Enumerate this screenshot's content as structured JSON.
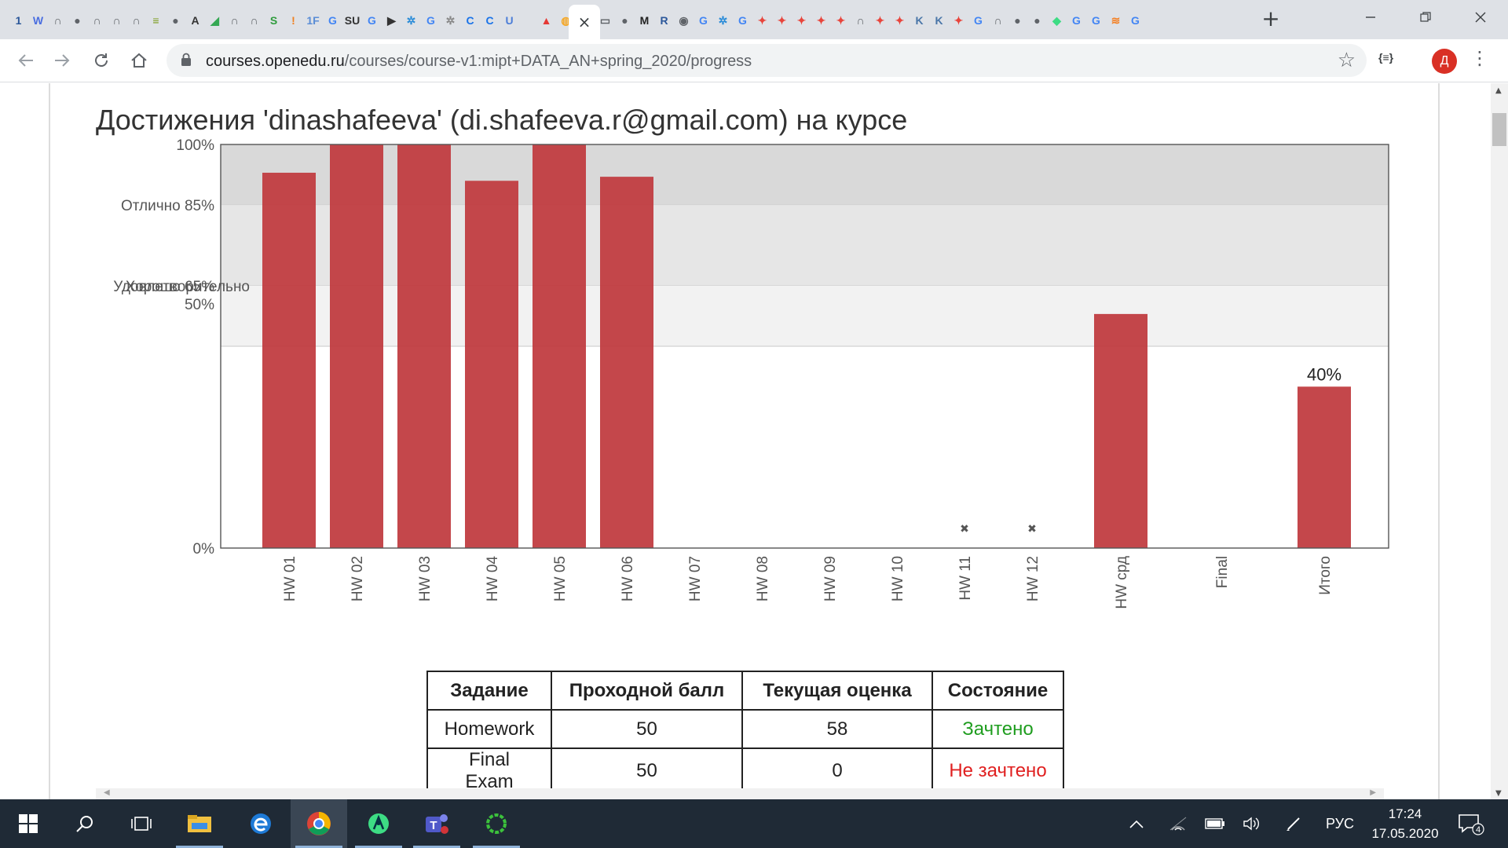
{
  "browser": {
    "active_tab_close": "×",
    "new_tab": "+",
    "url_host": "courses.openedu.ru",
    "url_path": "/courses/course-v1:mipt+DATA_AN+spring_2020/progress",
    "extension_label": "{≡}",
    "profile_initial": "Д",
    "pinned_tabs": [
      {
        "glyph": "1",
        "color": "#2a5699"
      },
      {
        "glyph": "W",
        "color": "#4a6ee0"
      },
      {
        "glyph": "∩",
        "color": "#5f6368"
      },
      {
        "glyph": "●",
        "color": "#5f6368"
      },
      {
        "glyph": "∩",
        "color": "#5f6368"
      },
      {
        "glyph": "∩",
        "color": "#5f6368"
      },
      {
        "glyph": "∩",
        "color": "#5f6368"
      },
      {
        "glyph": "≡",
        "color": "#7a9a1a"
      },
      {
        "glyph": "●",
        "color": "#5f6368"
      },
      {
        "glyph": "A",
        "color": "#333333"
      },
      {
        "glyph": "◢",
        "color": "#34a853"
      },
      {
        "glyph": "∩",
        "color": "#5f6368"
      },
      {
        "glyph": "∩",
        "color": "#5f6368"
      },
      {
        "glyph": "S",
        "color": "#2e9c3c"
      },
      {
        "glyph": "!",
        "color": "#f08020"
      },
      {
        "glyph": "1F",
        "color": "#5a8dd6"
      },
      {
        "glyph": "G",
        "color": "#4285f4"
      },
      {
        "glyph": "SU",
        "color": "#333333"
      },
      {
        "glyph": "G",
        "color": "#4285f4"
      },
      {
        "glyph": "▶",
        "color": "#333333"
      },
      {
        "glyph": "✲",
        "color": "#2a8cd8"
      },
      {
        "glyph": "G",
        "color": "#4285f4"
      },
      {
        "glyph": "✲",
        "color": "#888888"
      },
      {
        "glyph": "C",
        "color": "#1a73e8"
      },
      {
        "glyph": "C",
        "color": "#1a73e8"
      },
      {
        "glyph": "U",
        "color": "#4c7ed8"
      },
      {
        "glyph": "▲",
        "color": "#e53935"
      },
      {
        "glyph": "◍",
        "color": "#f5a623"
      },
      {
        "glyph": "G",
        "color": "#4285f4"
      },
      {
        "glyph": "▭",
        "color": "#5f6368"
      },
      {
        "glyph": "●",
        "color": "#5f6368"
      },
      {
        "glyph": "M",
        "color": "#222222"
      },
      {
        "glyph": "R",
        "color": "#2b579a"
      },
      {
        "glyph": "◉",
        "color": "#5f6368"
      },
      {
        "glyph": "G",
        "color": "#4285f4"
      },
      {
        "glyph": "✲",
        "color": "#2a8cd8"
      },
      {
        "glyph": "G",
        "color": "#4285f4"
      },
      {
        "glyph": "✦",
        "color": "#e8453c"
      },
      {
        "glyph": "✦",
        "color": "#e8453c"
      },
      {
        "glyph": "✦",
        "color": "#e8453c"
      },
      {
        "glyph": "✦",
        "color": "#e8453c"
      },
      {
        "glyph": "✦",
        "color": "#e8453c"
      },
      {
        "glyph": "∩",
        "color": "#5f6368"
      },
      {
        "glyph": "✦",
        "color": "#e8453c"
      },
      {
        "glyph": "✦",
        "color": "#e8453c"
      },
      {
        "glyph": "K",
        "color": "#4a76a8"
      },
      {
        "glyph": "K",
        "color": "#4a76a8"
      },
      {
        "glyph": "✦",
        "color": "#e8453c"
      },
      {
        "glyph": "G",
        "color": "#4285f4"
      },
      {
        "glyph": "∩",
        "color": "#5f6368"
      },
      {
        "glyph": "●",
        "color": "#5f6368"
      },
      {
        "glyph": "●",
        "color": "#5f6368"
      },
      {
        "glyph": "◆",
        "color": "#3ddc84"
      },
      {
        "glyph": "G",
        "color": "#4285f4"
      },
      {
        "glyph": "G",
        "color": "#4285f4"
      },
      {
        "glyph": "≋",
        "color": "#f48024"
      },
      {
        "glyph": "G",
        "color": "#4285f4"
      }
    ]
  },
  "page": {
    "heading": "Достижения 'dinashafeeva' (di.shafeeva.r@gmail.com) на курсе"
  },
  "chart_data": {
    "type": "bar",
    "categories": [
      "HW 01",
      "HW 02",
      "HW 03",
      "HW 04",
      "HW 05",
      "HW 06",
      "HW 07",
      "HW 08",
      "HW 09",
      "HW 10",
      "HW 11",
      "HW 12",
      "HW срд",
      "Final",
      "Итого"
    ],
    "values": [
      93,
      100,
      100,
      91,
      100,
      92,
      0,
      0,
      0,
      0,
      0,
      0,
      58,
      0,
      40
    ],
    "dropped_markers": [
      "HW 11",
      "HW 12"
    ],
    "marker_glyph": "✖",
    "total_label": "40%",
    "ylim": [
      0,
      100
    ],
    "grade_bands": [
      {
        "label_line1": "Отлично 85%",
        "label_line2": "",
        "from": 85,
        "to": 100
      },
      {
        "label_line1": "Хорошо 65%",
        "label_line2": "",
        "from": 65,
        "to": 85
      },
      {
        "label_line1": "Удовлетворительно",
        "label_line2": "50%",
        "from": 50,
        "to": 65
      }
    ],
    "y_ticks": [
      {
        "value": 100,
        "label": "100%"
      },
      {
        "value": 0,
        "label": "0%"
      }
    ],
    "bar_color": "#c0393d"
  },
  "grades_table": {
    "headers": [
      "Задание",
      "Проходной балл",
      "Текущая оценка",
      "Состояние"
    ],
    "rows": [
      {
        "name": "Homework",
        "pass": "50",
        "current": "58",
        "status": "Зачтено",
        "status_color": "#1f9d1f"
      },
      {
        "name": "Final Exam",
        "pass": "50",
        "current": "0",
        "status": "Не зачтено",
        "status_color": "#e02020"
      }
    ]
  },
  "taskbar": {
    "language": "РУС",
    "time": "17:24",
    "date": "17.05.2020",
    "notification_count": "4"
  }
}
